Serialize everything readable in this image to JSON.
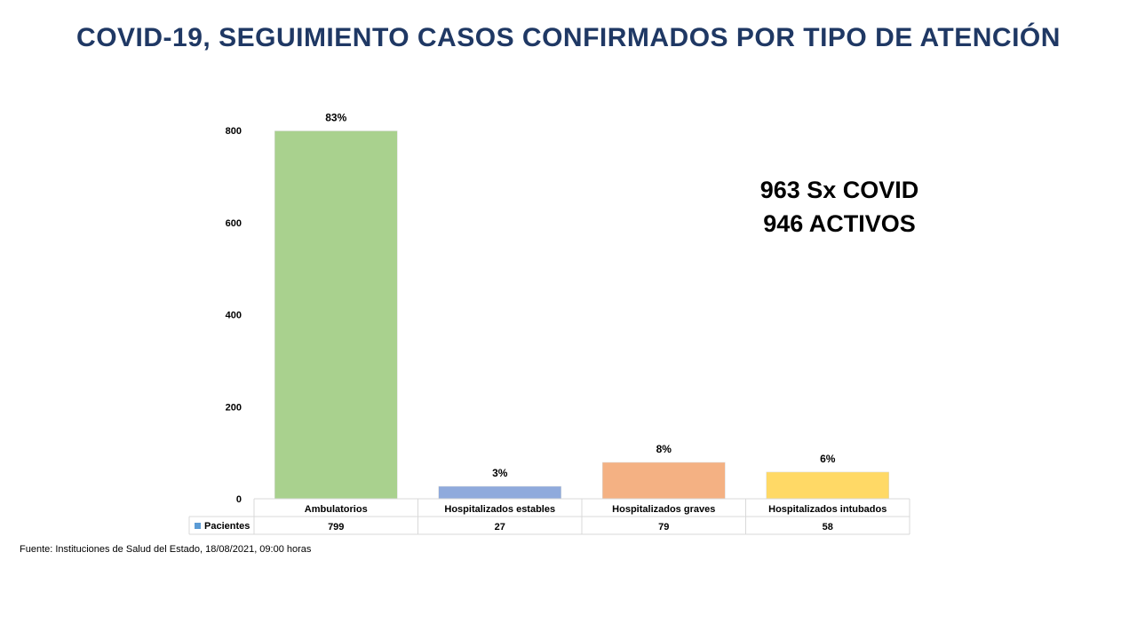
{
  "title": "COVID-19, SEGUIMIENTO CASOS CONFIRMADOS POR TIPO DE ATENCIÓN",
  "summary": {
    "line1": "963 Sx COVID",
    "line2": "946 ACTIVOS"
  },
  "source": "Fuente: Instituciones de Salud del Estado, 18/08/2021, 09:00 horas",
  "chart_data": {
    "type": "bar",
    "title": "",
    "categories": [
      "Ambulatorios",
      "Hospitalizados estables",
      "Hospitalizados graves",
      "Hospitalizados intubados"
    ],
    "series": [
      {
        "name": "Pacientes",
        "values": [
          799,
          27,
          79,
          58
        ]
      }
    ],
    "data_labels": [
      "83%",
      "3%",
      "8%",
      "6%"
    ],
    "bar_colors": [
      "#a9d18e",
      "#8faadc",
      "#f4b183",
      "#ffd966"
    ],
    "legend_color": "#5b9bd5",
    "ylim": [
      0,
      800
    ],
    "yticks": [
      0,
      200,
      400,
      600,
      800
    ],
    "grid": false,
    "data_table": true
  }
}
